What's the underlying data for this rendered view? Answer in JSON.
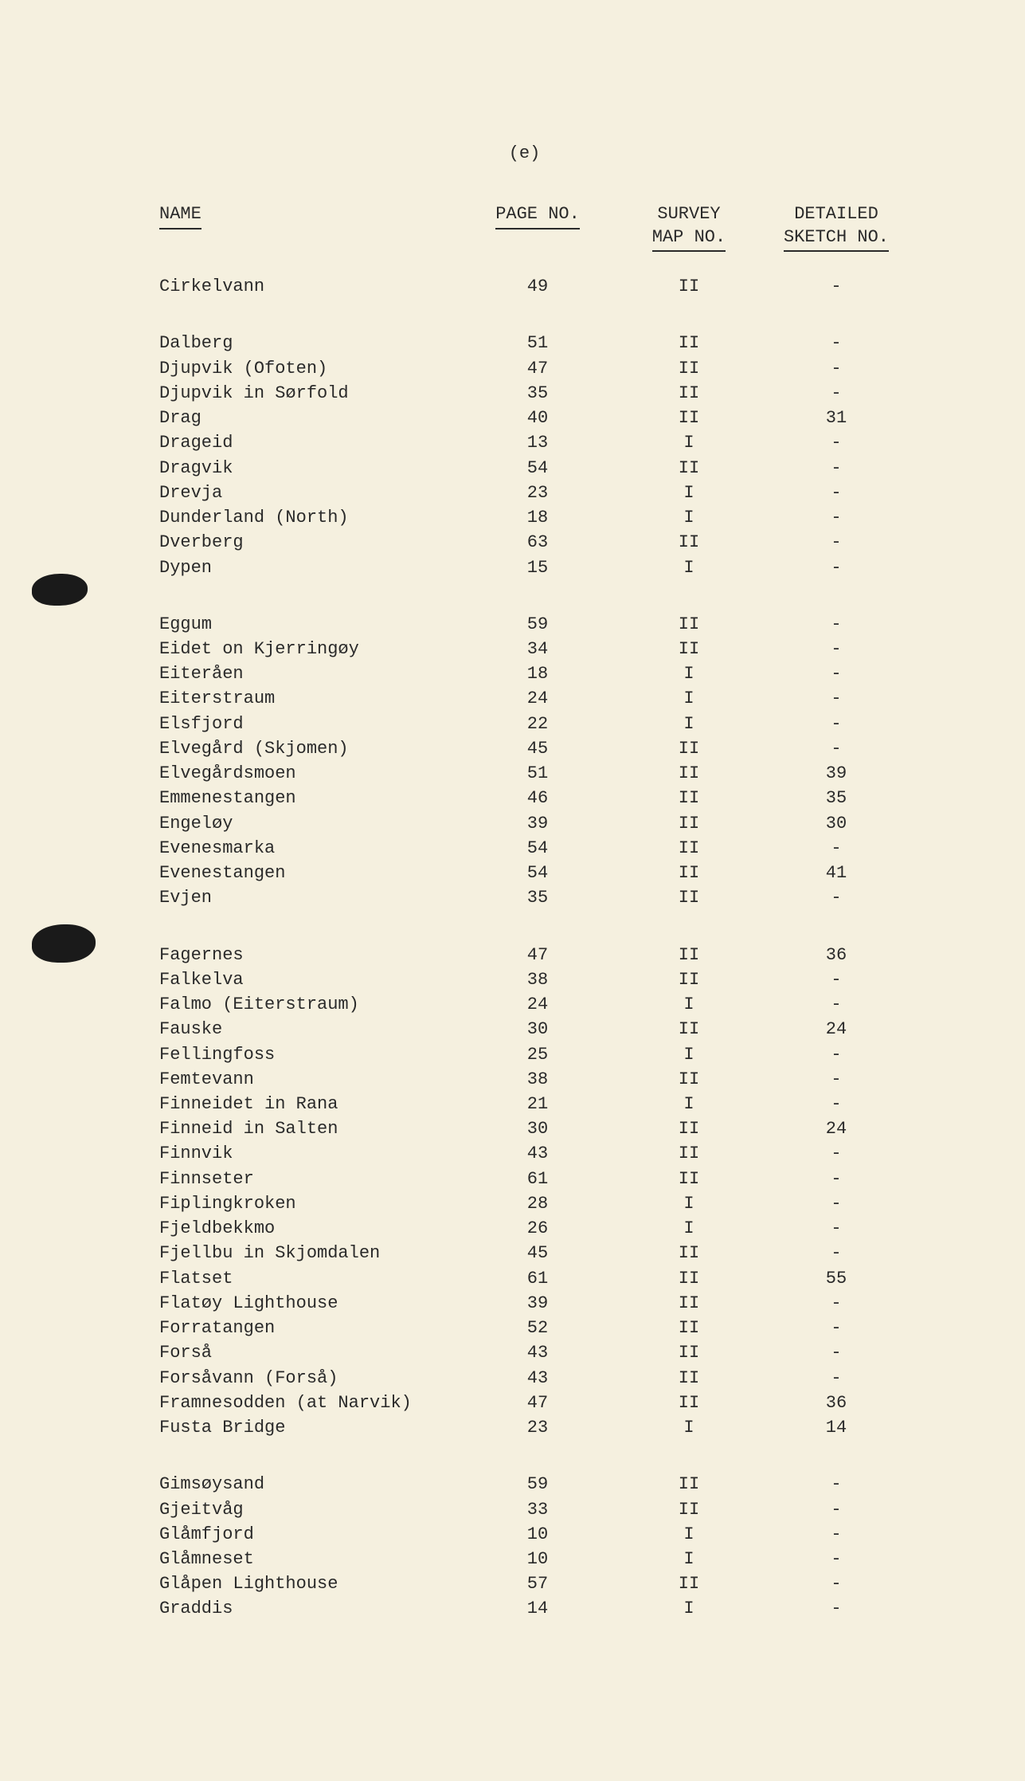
{
  "page_marker": "(e)",
  "headers": {
    "name": "NAME",
    "page": "PAGE NO.",
    "survey_l1": "SURVEY",
    "survey_l2": "MAP NO.",
    "sketch_l1": "DETAILED",
    "sketch_l2": "SKETCH NO."
  },
  "groups": [
    {
      "rows": [
        {
          "name": "Cirkelvann",
          "page": "49",
          "survey": "II",
          "sketch": "-"
        }
      ]
    },
    {
      "rows": [
        {
          "name": "Dalberg",
          "page": "51",
          "survey": "II",
          "sketch": "-"
        },
        {
          "name": "Djupvik (Ofoten)",
          "page": "47",
          "survey": "II",
          "sketch": "-"
        },
        {
          "name": "Djupvik in Sørfold",
          "page": "35",
          "survey": "II",
          "sketch": "-"
        },
        {
          "name": "Drag",
          "page": "40",
          "survey": "II",
          "sketch": "31"
        },
        {
          "name": "Drageid",
          "page": "13",
          "survey": "I",
          "sketch": "-"
        },
        {
          "name": "Dragvik",
          "page": "54",
          "survey": "II",
          "sketch": "-"
        },
        {
          "name": "Drevja",
          "page": "23",
          "survey": "I",
          "sketch": "-"
        },
        {
          "name": "Dunderland (North)",
          "page": "18",
          "survey": "I",
          "sketch": "-"
        },
        {
          "name": "Dverberg",
          "page": "63",
          "survey": "II",
          "sketch": "-"
        },
        {
          "name": "Dypen",
          "page": "15",
          "survey": "I",
          "sketch": "-"
        }
      ]
    },
    {
      "rows": [
        {
          "name": "Eggum",
          "page": "59",
          "survey": "II",
          "sketch": "-"
        },
        {
          "name": "Eidet on Kjerringøy",
          "page": "34",
          "survey": "II",
          "sketch": "-"
        },
        {
          "name": "Eiteråen",
          "page": "18",
          "survey": "I",
          "sketch": "-"
        },
        {
          "name": "Eiterstraum",
          "page": "24",
          "survey": "I",
          "sketch": "-"
        },
        {
          "name": "Elsfjord",
          "page": "22",
          "survey": "I",
          "sketch": "-"
        },
        {
          "name": "Elvegård (Skjomen)",
          "page": "45",
          "survey": "II",
          "sketch": "-"
        },
        {
          "name": "Elvegårdsmoen",
          "page": "51",
          "survey": "II",
          "sketch": "39"
        },
        {
          "name": "Emmenestangen",
          "page": "46",
          "survey": "II",
          "sketch": "35"
        },
        {
          "name": "Engeløy",
          "page": "39",
          "survey": "II",
          "sketch": "30"
        },
        {
          "name": "Evenesmarka",
          "page": "54",
          "survey": "II",
          "sketch": "-"
        },
        {
          "name": "Evenestangen",
          "page": "54",
          "survey": "II",
          "sketch": "41"
        },
        {
          "name": "Evjen",
          "page": "35",
          "survey": "II",
          "sketch": "-"
        }
      ]
    },
    {
      "rows": [
        {
          "name": "Fagernes",
          "page": "47",
          "survey": "II",
          "sketch": "36"
        },
        {
          "name": "Falkelva",
          "page": "38",
          "survey": "II",
          "sketch": "-"
        },
        {
          "name": "Falmo (Eiterstraum)",
          "page": "24",
          "survey": "I",
          "sketch": "-"
        },
        {
          "name": "Fauske",
          "page": "30",
          "survey": "II",
          "sketch": "24"
        },
        {
          "name": "Fellingfoss",
          "page": "25",
          "survey": "I",
          "sketch": "-"
        },
        {
          "name": "Femtevann",
          "page": "38",
          "survey": "II",
          "sketch": "-"
        },
        {
          "name": "Finneidet in Rana",
          "page": "21",
          "survey": "I",
          "sketch": "-"
        },
        {
          "name": "Finneid in Salten",
          "page": "30",
          "survey": "II",
          "sketch": "24"
        },
        {
          "name": "Finnvik",
          "page": "43",
          "survey": "II",
          "sketch": "-"
        },
        {
          "name": "Finnseter",
          "page": "61",
          "survey": "II",
          "sketch": "-"
        },
        {
          "name": "Fiplingkroken",
          "page": "28",
          "survey": "I",
          "sketch": "-"
        },
        {
          "name": "Fjeldbekkmo",
          "page": "26",
          "survey": "I",
          "sketch": "-"
        },
        {
          "name": "Fjellbu in Skjomdalen",
          "page": "45",
          "survey": "II",
          "sketch": "-"
        },
        {
          "name": "Flatset",
          "page": "61",
          "survey": "II",
          "sketch": "55"
        },
        {
          "name": "Flatøy Lighthouse",
          "page": "39",
          "survey": "II",
          "sketch": "-"
        },
        {
          "name": "Forratangen",
          "page": "52",
          "survey": "II",
          "sketch": "-"
        },
        {
          "name": "Forså",
          "page": "43",
          "survey": "II",
          "sketch": "-"
        },
        {
          "name": "Forsåvann (Forså)",
          "page": "43",
          "survey": "II",
          "sketch": "-"
        },
        {
          "name": "Framnesodden (at Narvik)",
          "page": "47",
          "survey": "II",
          "sketch": "36"
        },
        {
          "name": "Fusta Bridge",
          "page": "23",
          "survey": "I",
          "sketch": "14"
        }
      ]
    },
    {
      "rows": [
        {
          "name": "Gimsøysand",
          "page": "59",
          "survey": "II",
          "sketch": "-"
        },
        {
          "name": "Gjeitvåg",
          "page": "33",
          "survey": "II",
          "sketch": "-"
        },
        {
          "name": "Glåmfjord",
          "page": "10",
          "survey": "I",
          "sketch": "-"
        },
        {
          "name": "Glåmneset",
          "page": "10",
          "survey": "I",
          "sketch": "-"
        },
        {
          "name": "Glåpen Lighthouse",
          "page": "57",
          "survey": "II",
          "sketch": "-"
        },
        {
          "name": "Graddis",
          "page": "14",
          "survey": "I",
          "sketch": "-"
        }
      ]
    }
  ]
}
